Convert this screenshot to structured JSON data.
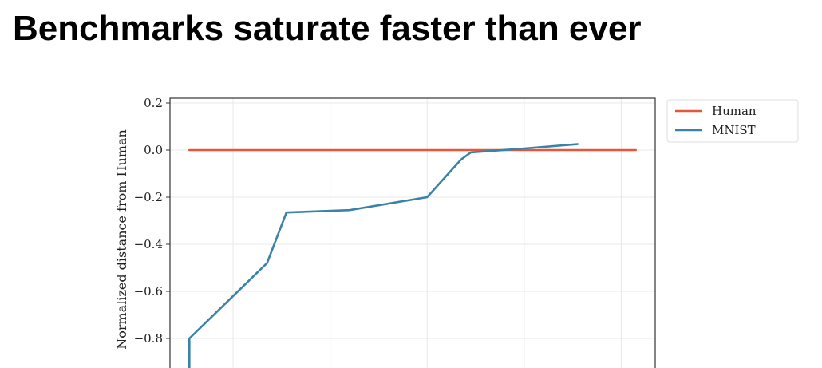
{
  "slide": {
    "title": "Benchmarks saturate faster than ever"
  },
  "chart_data": {
    "type": "line",
    "title": "",
    "xlabel": "",
    "ylabel": "Normalized distance from Human",
    "ylim": [
      -0.95,
      0.22
    ],
    "xlim": [
      0,
      100
    ],
    "yticks": [
      0.2,
      0.0,
      -0.2,
      -0.4,
      -0.6,
      -0.8
    ],
    "ytick_labels": [
      "0.2",
      "0.0",
      "−0.2",
      "−0.4",
      "−0.6",
      "−0.8"
    ],
    "grid": true,
    "legend_position": "outside-top-right",
    "series": [
      {
        "name": "Human",
        "color": "#e8563a",
        "x": [
          4,
          96
        ],
        "y": [
          0.0,
          0.0
        ]
      },
      {
        "name": "MNIST",
        "color": "#3a83a8",
        "x": [
          4,
          4,
          20,
          24,
          37,
          53,
          60,
          62,
          72,
          84
        ],
        "y": [
          -0.97,
          -0.8,
          -0.48,
          -0.265,
          -0.255,
          -0.2,
          -0.04,
          -0.01,
          0.005,
          0.025
        ]
      }
    ]
  }
}
